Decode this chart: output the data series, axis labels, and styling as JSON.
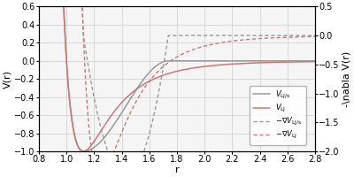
{
  "xlim": [
    0.8,
    2.8
  ],
  "ylim_left": [
    -1.0,
    0.6
  ],
  "ylim_right": [
    -2.0,
    0.5
  ],
  "xlabel": "r",
  "ylabel_left": "V(r)",
  "ylabel_right": "-\\nabla V(r)",
  "xticks": [
    0.8,
    1.0,
    1.2,
    1.4,
    1.6,
    1.8,
    2.0,
    2.2,
    2.4,
    2.6,
    2.8
  ],
  "yticks_left": [
    -1.0,
    -0.8,
    -0.6,
    -0.4,
    -0.2,
    0.0,
    0.2,
    0.4,
    0.6
  ],
  "yticks_right": [
    -2.0,
    -1.5,
    -1.0,
    -0.5,
    0.0,
    0.5
  ],
  "color_ljs": "#999999",
  "color_lj": "#cc7777",
  "background": "#f5f5f5",
  "grid_color": "#cccccc",
  "r_s": 1.2,
  "r_c": 1.737,
  "legend_entries": [
    "$V_{\\mathrm{LJ/s}}$",
    "$V_{\\mathrm{LJ}}$",
    "$-\\nabla V_{\\mathrm{LJ/s}}$",
    "$-\\nabla V_{\\mathrm{LJ}}$"
  ]
}
